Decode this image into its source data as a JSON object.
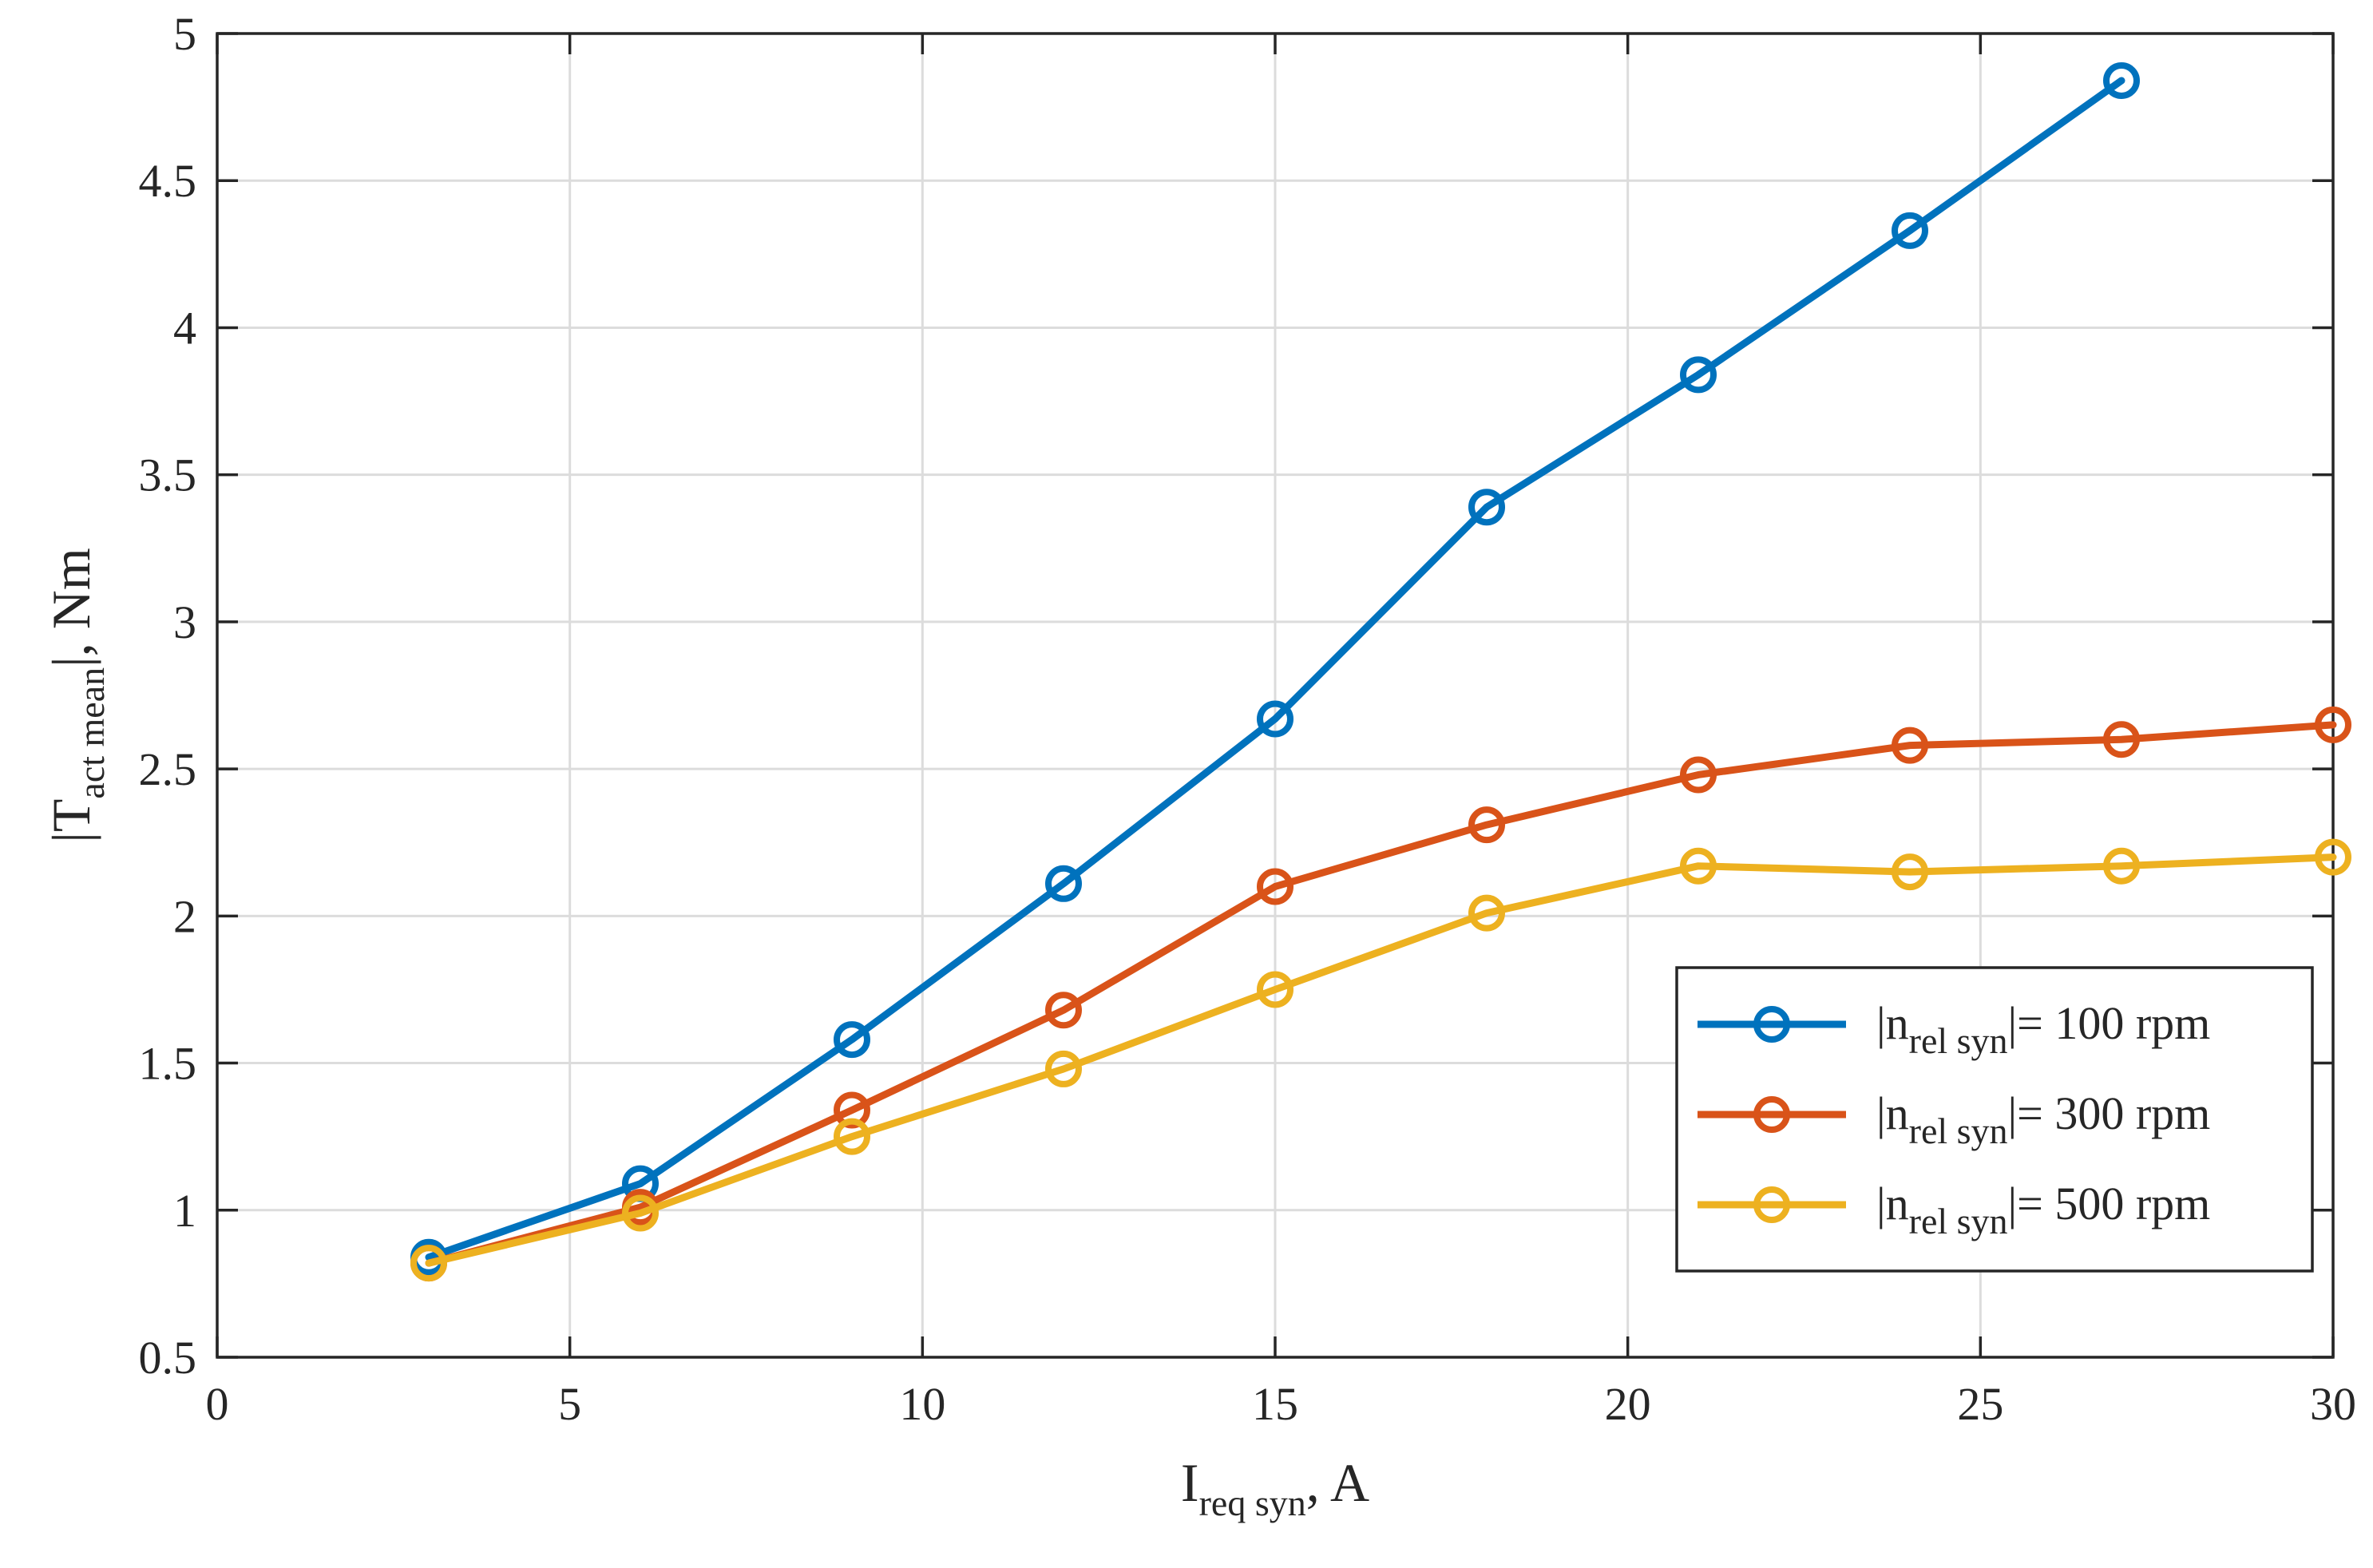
{
  "chart_data": {
    "type": "line",
    "xlabel": {
      "main": "I",
      "sub": "req syn",
      "suffix": ", A"
    },
    "ylabel": {
      "main": "|T",
      "sub": "act mean",
      "suffix": "|, Nm"
    },
    "xlim": [
      0,
      30
    ],
    "ylim": [
      0.5,
      5
    ],
    "xticks": [
      0,
      5,
      10,
      15,
      20,
      25,
      30
    ],
    "xtick_labels": [
      "0",
      "5",
      "10",
      "15",
      "20",
      "25",
      "30"
    ],
    "yticks": [
      0.5,
      1,
      1.5,
      2,
      2.5,
      3,
      3.5,
      4,
      4.5,
      5
    ],
    "ytick_labels": [
      "0.5",
      "1",
      "1.5",
      "2",
      "2.5",
      "3",
      "3.5",
      "4",
      "4.5",
      "5"
    ],
    "grid": true,
    "legend_position": "lower-right",
    "series": [
      {
        "name": {
          "main": "|n",
          "sub": "rel syn",
          "suffix": "|= 100 rpm"
        },
        "color": "#0072BD",
        "marker": "circle",
        "x": [
          3,
          6,
          9,
          12,
          15,
          18,
          21,
          24,
          27
        ],
        "y": [
          0.84,
          1.09,
          1.58,
          2.11,
          2.67,
          3.39,
          3.84,
          4.33,
          4.84
        ]
      },
      {
        "name": {
          "main": "|n",
          "sub": "rel syn",
          "suffix": "|= 300 rpm"
        },
        "color": "#D95319",
        "marker": "circle",
        "x": [
          3,
          6,
          9,
          12,
          15,
          18,
          21,
          24,
          27,
          30
        ],
        "y": [
          0.82,
          1.01,
          1.34,
          1.68,
          2.1,
          2.31,
          2.48,
          2.58,
          2.6,
          2.65
        ]
      },
      {
        "name": {
          "main": "|n",
          "sub": "rel syn",
          "suffix": "|= 500 rpm"
        },
        "color": "#EDB120",
        "marker": "circle",
        "x": [
          3,
          6,
          9,
          12,
          15,
          18,
          21,
          24,
          27,
          30
        ],
        "y": [
          0.82,
          0.99,
          1.25,
          1.48,
          1.75,
          2.01,
          2.17,
          2.15,
          2.17,
          2.2
        ]
      }
    ]
  }
}
